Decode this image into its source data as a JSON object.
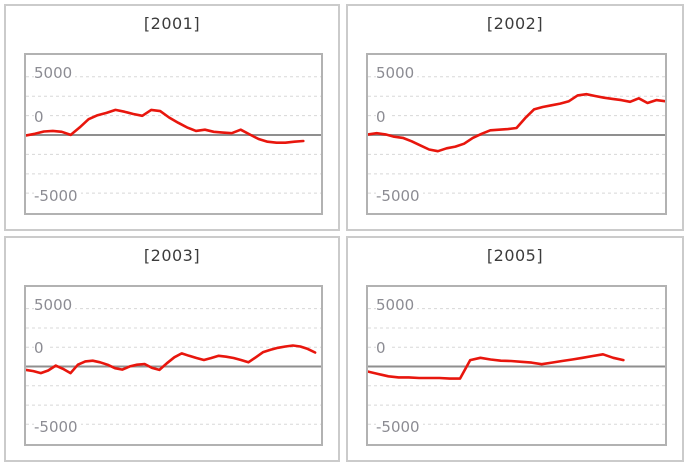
{
  "axis": {
    "tick_labels": [
      "5000",
      "0",
      "-5000"
    ],
    "tick_values": [
      5000,
      0,
      -5000
    ],
    "gridline_interval": 1666.67,
    "gridline_style": "dashed",
    "zero_line": "solid gray",
    "ylim": [
      -6700,
      6900
    ]
  },
  "colors": {
    "line": "#e8160d",
    "zero_line": "#8f8f8f",
    "gridline": "#d8d8d8",
    "plot_border": "#b2b2b2",
    "panel_border": "#cbcbcb",
    "title_text": "#3c3c3c",
    "axis_text": "#8c8c93",
    "background": "#ffffff"
  },
  "chart_data": [
    {
      "type": "line",
      "title": "[2001]",
      "ylim": [
        -6700,
        6900
      ],
      "yticks": [
        5000,
        0,
        -5000
      ],
      "x_end_fraction": 0.94,
      "values": [
        -50,
        100,
        300,
        350,
        270,
        0,
        650,
        1350,
        1700,
        1900,
        2150,
        2000,
        1800,
        1650,
        2150,
        2050,
        1500,
        1050,
        650,
        350,
        450,
        270,
        200,
        150,
        450,
        50,
        -350,
        -580,
        -670,
        -670,
        -580,
        -520
      ]
    },
    {
      "type": "line",
      "title": "[2002]",
      "ylim": [
        -6700,
        6900
      ],
      "yticks": [
        5000,
        0,
        -5000
      ],
      "x_end_fraction": 1.0,
      "values": [
        50,
        150,
        50,
        -150,
        -250,
        -550,
        -900,
        -1250,
        -1400,
        -1150,
        -1000,
        -750,
        -250,
        100,
        400,
        450,
        500,
        600,
        1450,
        2200,
        2400,
        2550,
        2700,
        2900,
        3400,
        3500,
        3350,
        3200,
        3100,
        3000,
        2850,
        3150,
        2750,
        3000,
        2900
      ]
    },
    {
      "type": "line",
      "title": "[2003]",
      "ylim": [
        -6700,
        6900
      ],
      "yticks": [
        5000,
        0,
        -5000
      ],
      "x_end_fraction": 0.98,
      "values": [
        -300,
        -400,
        -580,
        -350,
        70,
        -210,
        -580,
        150,
        440,
        500,
        360,
        150,
        -150,
        -270,
        0,
        150,
        210,
        -130,
        -300,
        270,
        790,
        1130,
        920,
        730,
        560,
        730,
        920,
        840,
        730,
        560,
        360,
        790,
        1240,
        1440,
        1610,
        1730,
        1810,
        1730,
        1520,
        1210
      ]
    },
    {
      "type": "line",
      "title": "[2005]",
      "ylim": [
        -6700,
        6900
      ],
      "yticks": [
        5000,
        0,
        -5000
      ],
      "x_end_fraction": 0.86,
      "values": [
        -450,
        -650,
        -850,
        -950,
        -950,
        -1000,
        -1000,
        -1000,
        -1050,
        -1050,
        550,
        750,
        600,
        500,
        470,
        400,
        330,
        190,
        330,
        470,
        600,
        750,
        900,
        1050,
        750,
        550
      ]
    }
  ]
}
